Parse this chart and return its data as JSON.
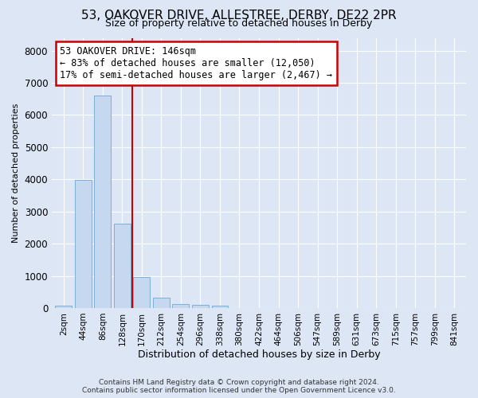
{
  "title1": "53, OAKOVER DRIVE, ALLESTREE, DERBY, DE22 2PR",
  "title2": "Size of property relative to detached houses in Derby",
  "xlabel": "Distribution of detached houses by size in Derby",
  "ylabel": "Number of detached properties",
  "categories": [
    "2sqm",
    "44sqm",
    "86sqm",
    "128sqm",
    "170sqm",
    "212sqm",
    "254sqm",
    "296sqm",
    "338sqm",
    "380sqm",
    "422sqm",
    "464sqm",
    "506sqm",
    "547sqm",
    "589sqm",
    "631sqm",
    "673sqm",
    "715sqm",
    "757sqm",
    "799sqm",
    "841sqm"
  ],
  "bar_values": [
    70,
    3980,
    6600,
    2620,
    960,
    310,
    130,
    100,
    80,
    0,
    0,
    0,
    0,
    0,
    0,
    0,
    0,
    0,
    0,
    0,
    0
  ],
  "bar_color": "#c5d8f0",
  "bar_edge_color": "#7bafd4",
  "vline_x": 3.5,
  "vline_color": "#cc0000",
  "annotation_text": "53 OAKOVER DRIVE: 146sqm\n← 83% of detached houses are smaller (12,050)\n17% of semi-detached houses are larger (2,467) →",
  "annotation_box_color": "#ffffff",
  "annotation_box_edge": "#cc0000",
  "ylim": [
    0,
    8400
  ],
  "yticks": [
    0,
    1000,
    2000,
    3000,
    4000,
    5000,
    6000,
    7000,
    8000
  ],
  "bg_color": "#dce6f5",
  "plot_bg_color": "#dce6f5",
  "grid_color": "#ffffff",
  "footer": "Contains HM Land Registry data © Crown copyright and database right 2024.\nContains public sector information licensed under the Open Government Licence v3.0.",
  "title1_fontsize": 11,
  "title2_fontsize": 9,
  "ylabel_fontsize": 8,
  "xlabel_fontsize": 9
}
